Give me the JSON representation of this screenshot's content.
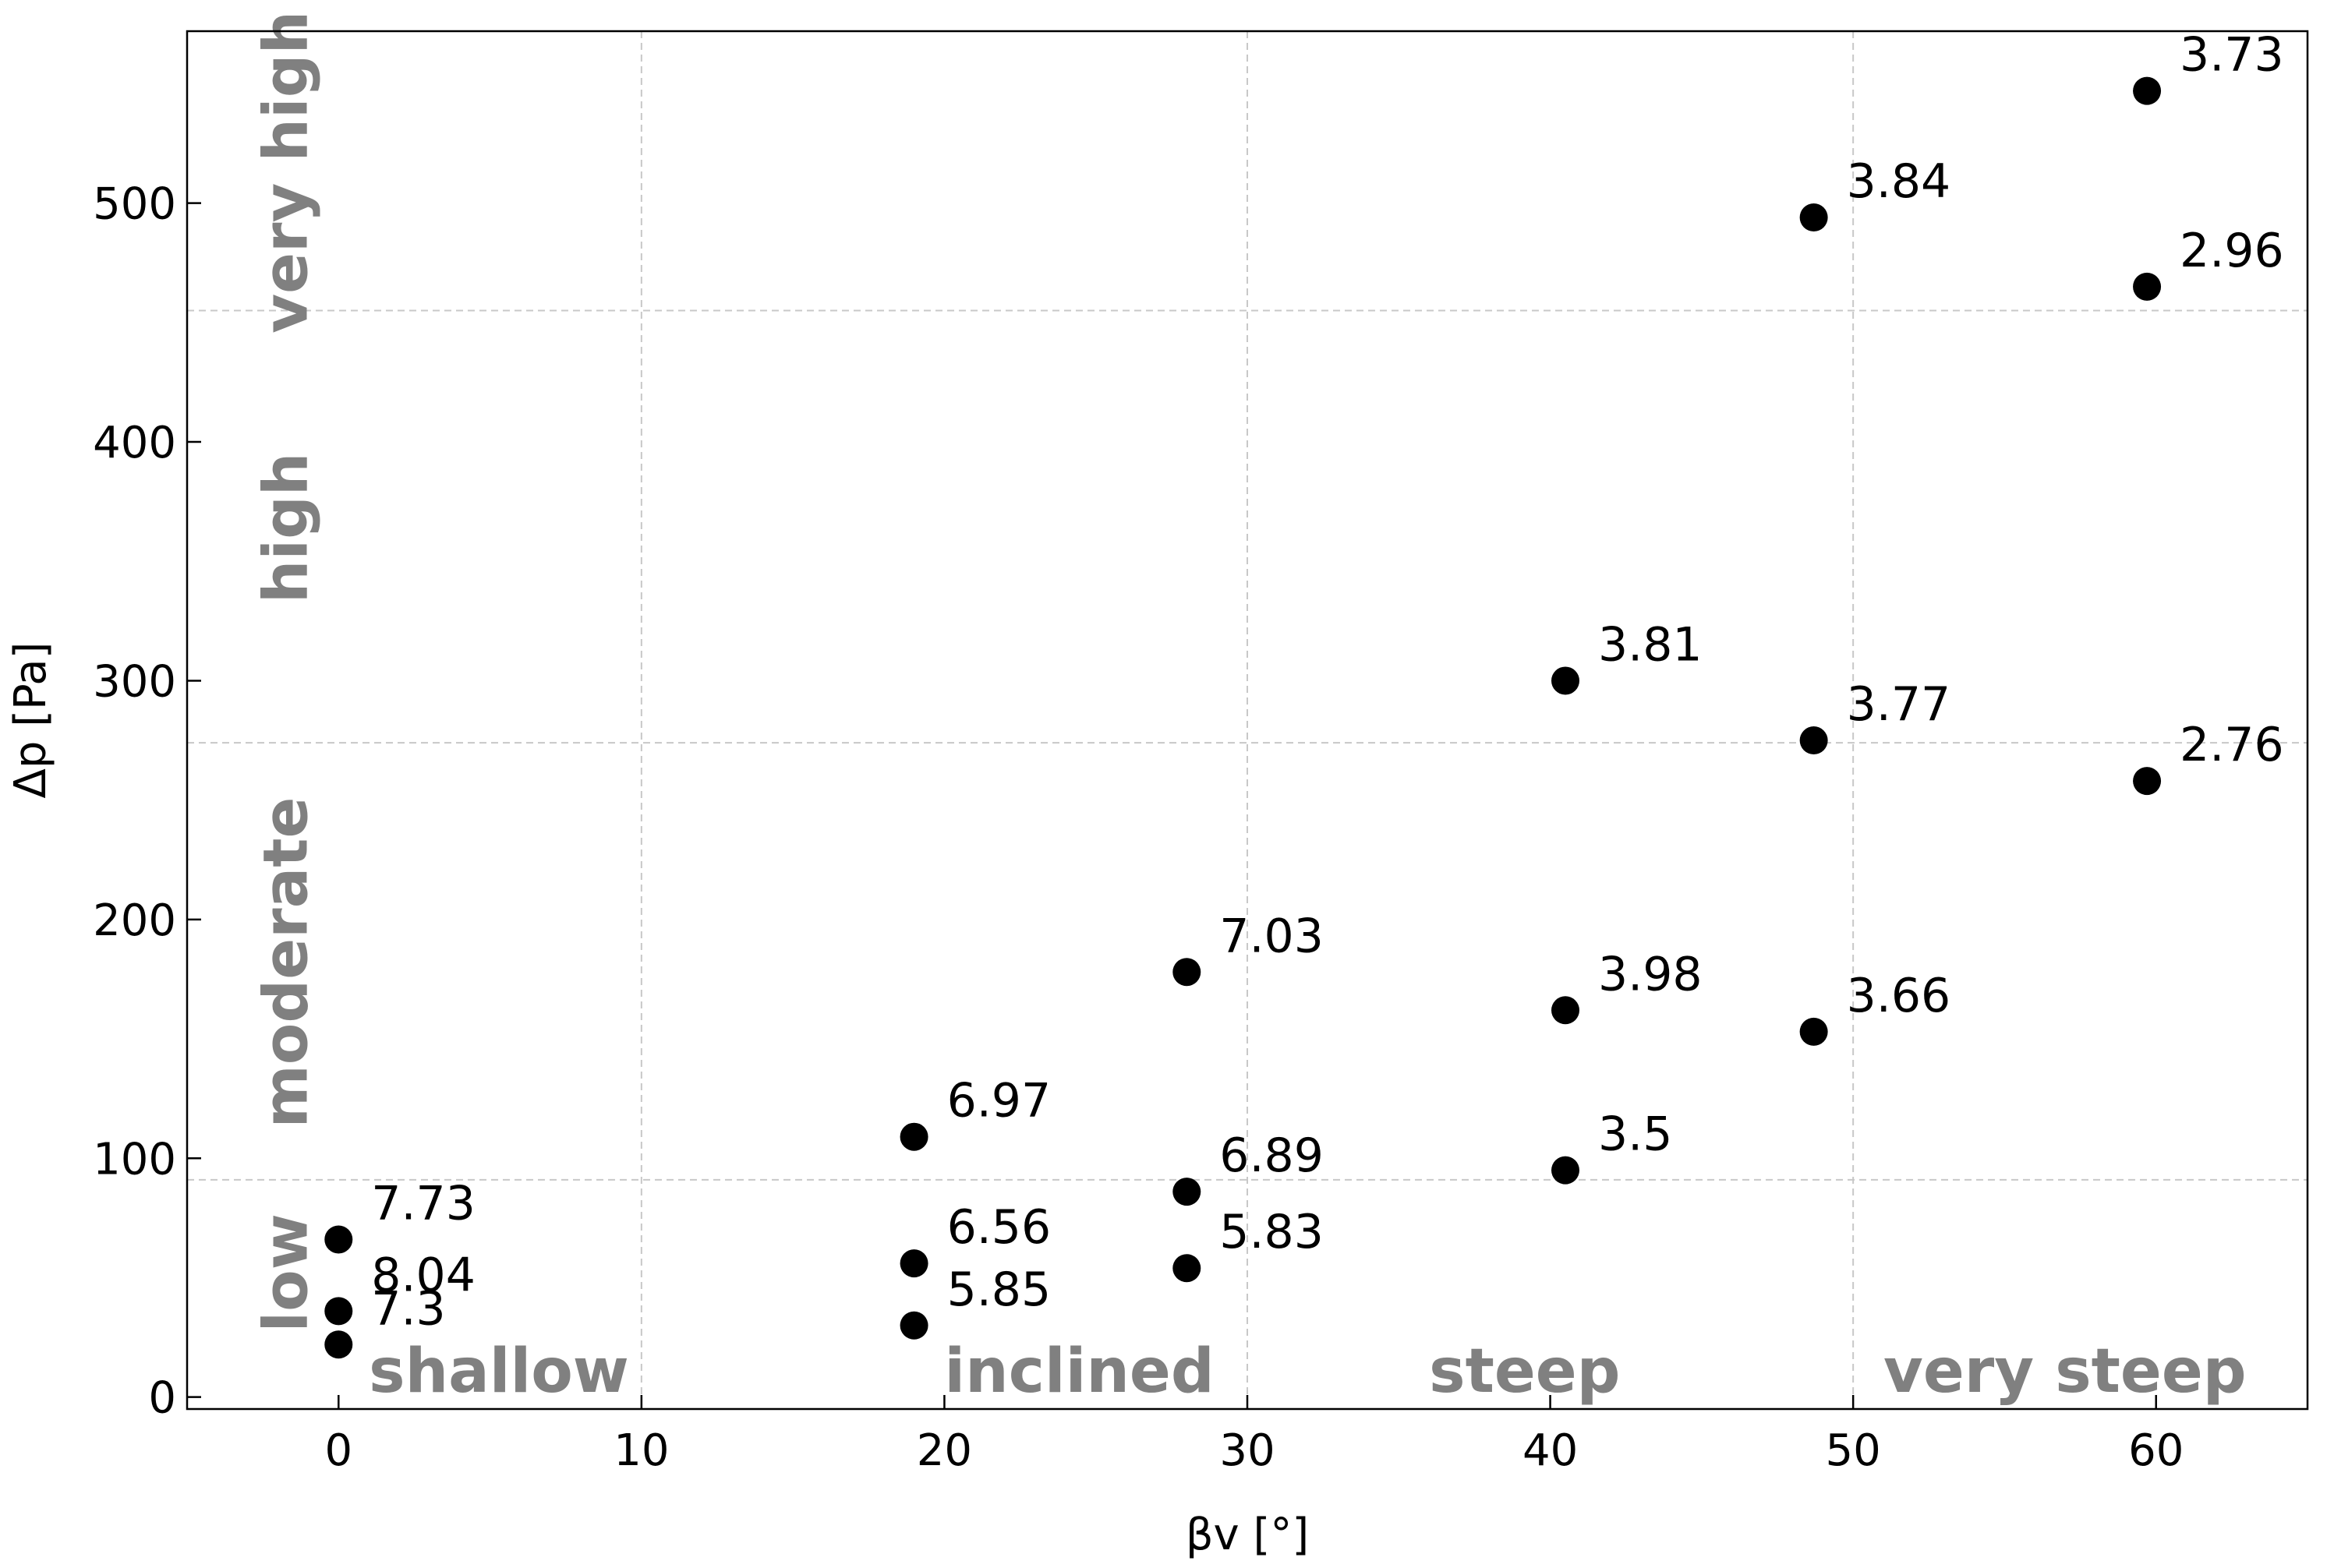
{
  "chart_data": {
    "type": "scatter",
    "title": "",
    "xlabel": "βv [°]",
    "ylabel": "Δp [Pa]",
    "xlim": [
      -5,
      65
    ],
    "ylim": [
      -5,
      572
    ],
    "x_ticks": [
      0,
      10,
      20,
      30,
      40,
      50,
      60
    ],
    "y_ticks": [
      0,
      100,
      200,
      300,
      400,
      500
    ],
    "x_region_boundaries": [
      10,
      30,
      50
    ],
    "y_region_boundaries": [
      91,
      274,
      455
    ],
    "x_regions": [
      {
        "label": "shallow",
        "x_start": 1
      },
      {
        "label": "inclined",
        "x_start": 20
      },
      {
        "label": "steep",
        "x_start": 36
      },
      {
        "label": "very steep",
        "x_start": 51
      }
    ],
    "y_regions": [
      {
        "label": "low",
        "y_mid": 52
      },
      {
        "label": "moderate",
        "y_mid": 182
      },
      {
        "label": "high",
        "y_mid": 364
      },
      {
        "label": "very high",
        "y_mid": 513
      }
    ],
    "points": [
      {
        "x": 0,
        "y": 66,
        "label": "7.73"
      },
      {
        "x": 0,
        "y": 36,
        "label": "8.04"
      },
      {
        "x": 0,
        "y": 22,
        "label": "7.3"
      },
      {
        "x": 19,
        "y": 109,
        "label": "6.97"
      },
      {
        "x": 19,
        "y": 56,
        "label": "6.56"
      },
      {
        "x": 19,
        "y": 30,
        "label": "5.85"
      },
      {
        "x": 28,
        "y": 178,
        "label": "7.03"
      },
      {
        "x": 28,
        "y": 86,
        "label": "6.89"
      },
      {
        "x": 28,
        "y": 54,
        "label": "5.83"
      },
      {
        "x": 40.5,
        "y": 300,
        "label": "3.81"
      },
      {
        "x": 40.5,
        "y": 162,
        "label": "3.98"
      },
      {
        "x": 40.5,
        "y": 95,
        "label": "3.5"
      },
      {
        "x": 48.7,
        "y": 494,
        "label": "3.84"
      },
      {
        "x": 48.7,
        "y": 275,
        "label": "3.77"
      },
      {
        "x": 48.7,
        "y": 153,
        "label": "3.66"
      },
      {
        "x": 59.7,
        "y": 547,
        "label": "3.73"
      },
      {
        "x": 59.7,
        "y": 465,
        "label": "2.96"
      },
      {
        "x": 59.7,
        "y": 258,
        "label": "2.76"
      }
    ]
  }
}
